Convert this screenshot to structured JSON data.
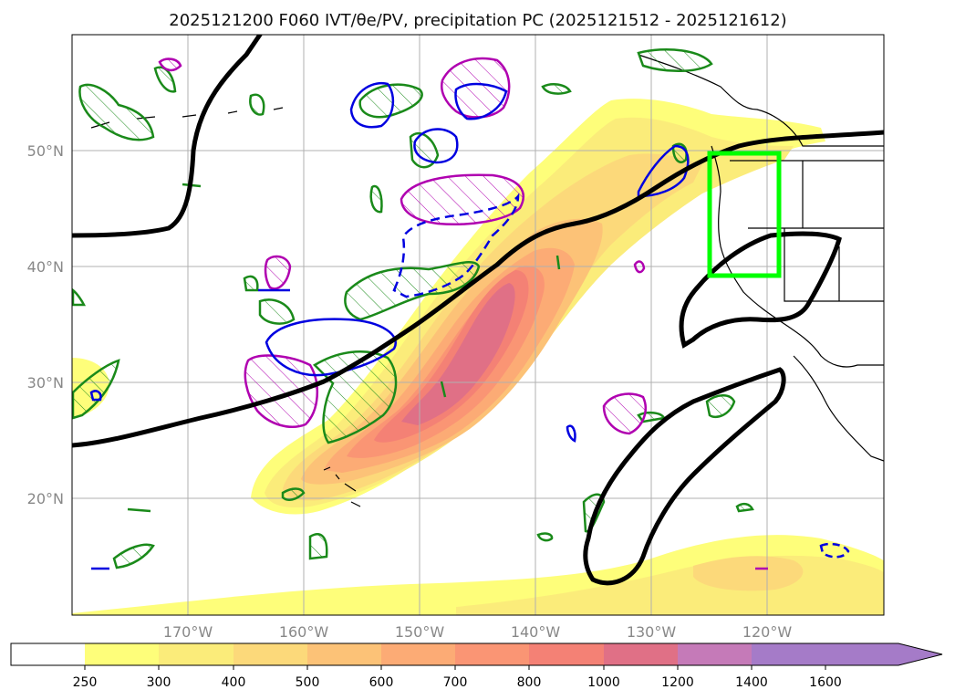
{
  "title": "2025121200 F060 IVT/θe/PV, precipitation PC (2025121512 - 2025121612)",
  "map": {
    "lat_labels": [
      "50°N",
      "40°N",
      "30°N",
      "20°N"
    ],
    "lon_labels": [
      "170°W",
      "160°W",
      "150°W",
      "140°W",
      "130°W",
      "120°W"
    ],
    "box_color": "#00ff00",
    "field_colors": [
      "#ffffff",
      "#fefe7a",
      "#fbec7a",
      "#fcd97a",
      "#fcc277",
      "#fcab75",
      "#fa9574",
      "#f48175",
      "#e07086",
      "#c57ab8",
      "#a57bc8"
    ]
  },
  "colorbar": {
    "levels": [
      "250",
      "300",
      "400",
      "500",
      "600",
      "700",
      "800",
      "1000",
      "1200",
      "1400",
      "1600"
    ],
    "extend": "max"
  }
}
